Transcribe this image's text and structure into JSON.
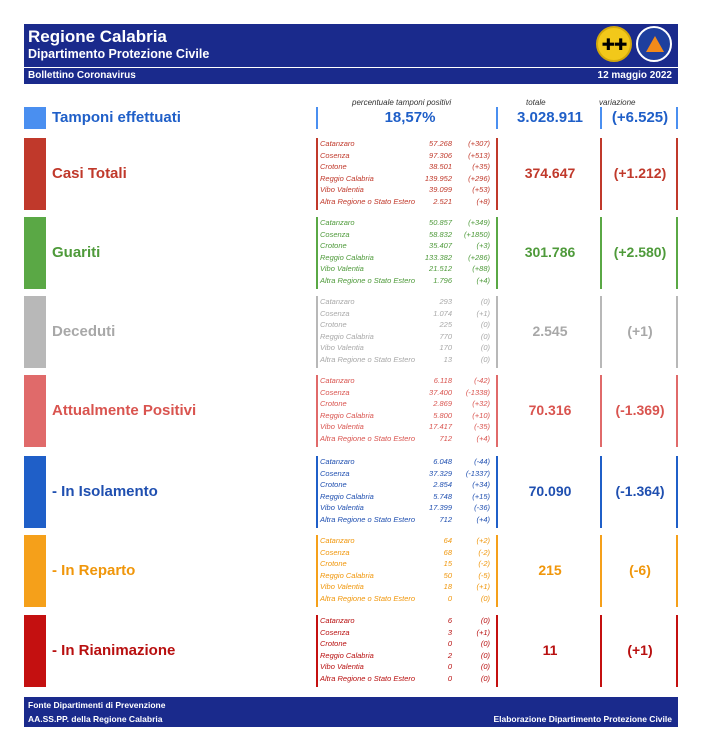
{
  "header": {
    "title": "Regione Calabria",
    "subtitle": "Dipartimento Protezione Civile",
    "bulletin": "Bollettino Coronavirus",
    "date": "12 maggio 2022",
    "logo_left_text": "✚✚",
    "logo_right_text": "PROTEZIONE CIVILE · Regione Calabria"
  },
  "columns": {
    "percent": "percentuale tamponi positivi",
    "total": "totale",
    "variation": "variazione"
  },
  "tamponi": {
    "label": "Tamponi effettuati",
    "percent": "18,57%",
    "total": "3.028.911",
    "variation": "(+6.525)",
    "color": "#4a8ff0"
  },
  "sections": [
    {
      "label": "Casi Totali",
      "total": "374.647",
      "variation": "(+1.212)",
      "color": "#c0392b",
      "label_color": "#c0392b",
      "rows": [
        {
          "name": "Catanzaro",
          "value": "57.268",
          "delta": "(+307)"
        },
        {
          "name": "Cosenza",
          "value": "97.306",
          "delta": "(+513)"
        },
        {
          "name": "Crotone",
          "value": "38.501",
          "delta": "(+35)"
        },
        {
          "name": "Reggio Calabria",
          "value": "139.952",
          "delta": "(+296)"
        },
        {
          "name": "Vibo Valentia",
          "value": "39.099",
          "delta": "(+53)"
        },
        {
          "name": "Altra Regione o Stato Estero",
          "value": "2.521",
          "delta": "(+8)"
        }
      ]
    },
    {
      "label": "Guariti",
      "total": "301.786",
      "variation": "(+2.580)",
      "color": "#5aa845",
      "label_color": "#4e9a3a",
      "rows": [
        {
          "name": "Catanzaro",
          "value": "50.857",
          "delta": "(+349)"
        },
        {
          "name": "Cosenza",
          "value": "58.832",
          "delta": "(+1850)"
        },
        {
          "name": "Crotone",
          "value": "35.407",
          "delta": "(+3)"
        },
        {
          "name": "Reggio Calabria",
          "value": "133.382",
          "delta": "(+286)"
        },
        {
          "name": "Vibo Valentia",
          "value": "21.512",
          "delta": "(+88)"
        },
        {
          "name": "Altra Regione o Stato Estero",
          "value": "1.796",
          "delta": "(+4)"
        }
      ]
    },
    {
      "label": "Deceduti",
      "total": "2.545",
      "variation": "(+1)",
      "color": "#b8b8b8",
      "label_color": "#a8a8a8",
      "rows": [
        {
          "name": "Catanzaro",
          "value": "293",
          "delta": "(0)"
        },
        {
          "name": "Cosenza",
          "value": "1.074",
          "delta": "(+1)"
        },
        {
          "name": "Crotone",
          "value": "225",
          "delta": "(0)"
        },
        {
          "name": "Reggio Calabria",
          "value": "770",
          "delta": "(0)"
        },
        {
          "name": "Vibo Valentia",
          "value": "170",
          "delta": "(0)"
        },
        {
          "name": "Altra Regione o Stato Estero",
          "value": "13",
          "delta": "(0)"
        }
      ]
    },
    {
      "label": "Attualmente Positivi",
      "total": "70.316",
      "variation": "(-1.369)",
      "color": "#e06a6a",
      "label_color": "#d9544f",
      "rows": [
        {
          "name": "Catanzaro",
          "value": "6.118",
          "delta": "(-42)"
        },
        {
          "name": "Cosenza",
          "value": "37.400",
          "delta": "(-1338)"
        },
        {
          "name": "Crotone",
          "value": "2.869",
          "delta": "(+32)"
        },
        {
          "name": "Reggio Calabria",
          "value": "5.800",
          "delta": "(+10)"
        },
        {
          "name": "Vibo Valentia",
          "value": "17.417",
          "delta": "(-35)"
        },
        {
          "name": "Altra Regione o Stato Estero",
          "value": "712",
          "delta": "(+4)"
        }
      ]
    },
    {
      "label": " - In Isolamento",
      "total": "70.090",
      "variation": "(-1.364)",
      "color": "#1f5fc8",
      "label_color": "#1f4fb0",
      "rows": [
        {
          "name": "Catanzaro",
          "value": "6.048",
          "delta": "(-44)"
        },
        {
          "name": "Cosenza",
          "value": "37.329",
          "delta": "(-1337)"
        },
        {
          "name": "Crotone",
          "value": "2.854",
          "delta": "(+34)"
        },
        {
          "name": "Reggio Calabria",
          "value": "5.748",
          "delta": "(+15)"
        },
        {
          "name": "Vibo Valentia",
          "value": "17.399",
          "delta": "(-36)"
        },
        {
          "name": "Altra Regione o Stato Estero",
          "value": "712",
          "delta": "(+4)"
        }
      ]
    },
    {
      "label": " - In Reparto",
      "total": "215",
      "variation": "(-6)",
      "color": "#f5a01a",
      "label_color": "#f0960a",
      "rows": [
        {
          "name": "Catanzaro",
          "value": "64",
          "delta": "(+2)"
        },
        {
          "name": "Cosenza",
          "value": "68",
          "delta": "(-2)"
        },
        {
          "name": "Crotone",
          "value": "15",
          "delta": "(-2)"
        },
        {
          "name": "Reggio Calabria",
          "value": "50",
          "delta": "(-5)"
        },
        {
          "name": "Vibo Valentia",
          "value": "18",
          "delta": "(+1)"
        },
        {
          "name": "Altra Regione o Stato Estero",
          "value": "0",
          "delta": "(0)"
        }
      ]
    },
    {
      "label": " - In Rianimazione",
      "total": "11",
      "variation": "(+1)",
      "color": "#c41010",
      "label_color": "#b80f0f",
      "rows": [
        {
          "name": "Catanzaro",
          "value": "6",
          "delta": "(0)"
        },
        {
          "name": "Cosenza",
          "value": "3",
          "delta": "(+1)"
        },
        {
          "name": "Crotone",
          "value": "0",
          "delta": "(0)"
        },
        {
          "name": "Reggio Calabria",
          "value": "2",
          "delta": "(0)"
        },
        {
          "name": "Vibo Valentia",
          "value": "0",
          "delta": "(0)"
        },
        {
          "name": "Altra Regione o Stato Estero",
          "value": "0",
          "delta": "(0)"
        }
      ]
    }
  ],
  "footer": {
    "line1": "Fonte Dipartimenti di Prevenzione",
    "line2": "AA.SS.PP.  della Regione Calabria",
    "credit": "Elaborazione Dipartimento Protezione Civile"
  }
}
